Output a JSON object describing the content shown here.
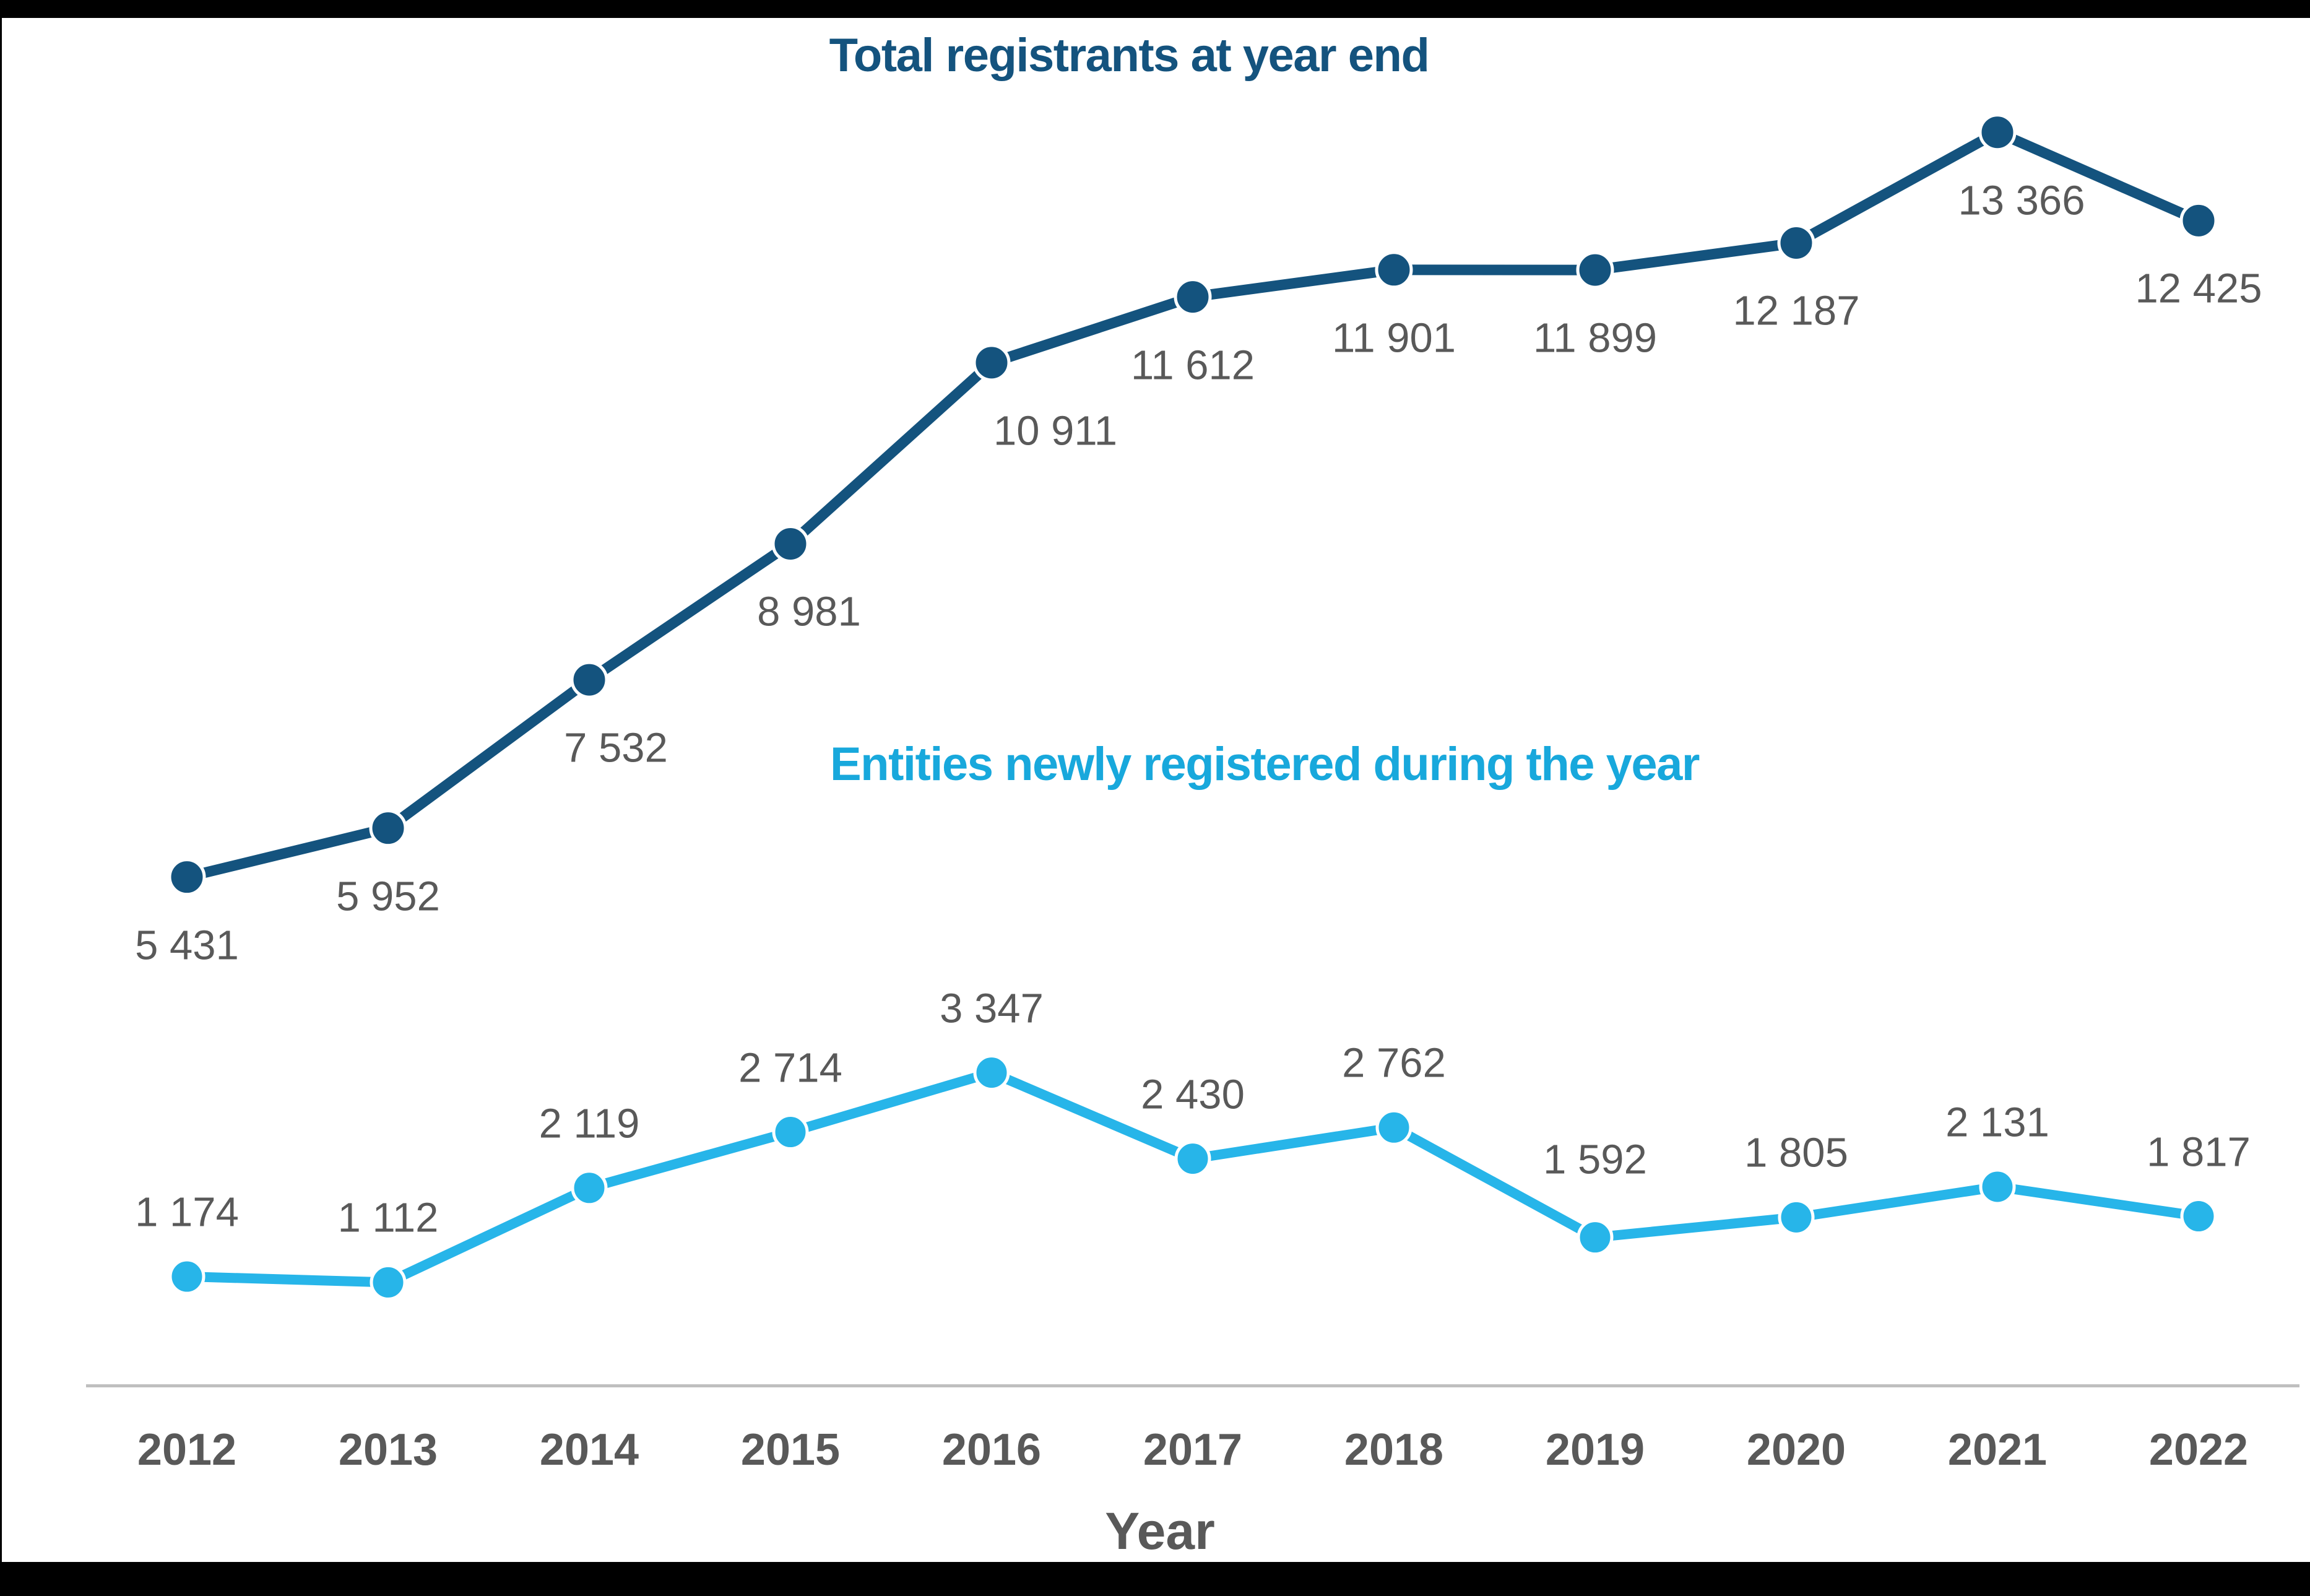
{
  "colors": {
    "dark_blue": "#14537E",
    "light_blue": "#27B5E9",
    "light_blue_text": "#18A8DC",
    "label_gray": "#595959",
    "axis_gray": "#BFBFBF",
    "frame_black": "#000000",
    "background": "#FFFFFF"
  },
  "chart_data": {
    "type": "line",
    "categories": [
      "2012",
      "2013",
      "2014",
      "2015",
      "2016",
      "2017",
      "2018",
      "2019",
      "2020",
      "2021",
      "2022"
    ],
    "xlabel": "Year",
    "ylim": [
      0,
      14000
    ],
    "y_axis_visible": false,
    "gridlines": false,
    "legend_position": "inline-titles",
    "series": [
      {
        "name": "Total registrants at year end",
        "color": "#14537E",
        "values": [
          5431,
          5952,
          7532,
          8981,
          10911,
          11612,
          11901,
          11899,
          12187,
          13366,
          12425
        ],
        "labels": [
          "5 431",
          "5 952",
          "7 532",
          "8 981",
          "10 911",
          "11 612",
          "11 901",
          "11 899",
          "12 187",
          "13 366",
          "12 425"
        ],
        "label_position": "below"
      },
      {
        "name": "Entities newly registered during the year",
        "color": "#27B5E9",
        "values": [
          1174,
          1112,
          2119,
          2714,
          3347,
          2430,
          2762,
          1592,
          1805,
          2131,
          1817
        ],
        "labels": [
          "1 174",
          "1 112",
          "2 119",
          "2 714",
          "3 347",
          "2 430",
          "2 762",
          "1 592",
          "1 805",
          "2 131",
          "1 817"
        ],
        "label_position": "above"
      }
    ]
  }
}
